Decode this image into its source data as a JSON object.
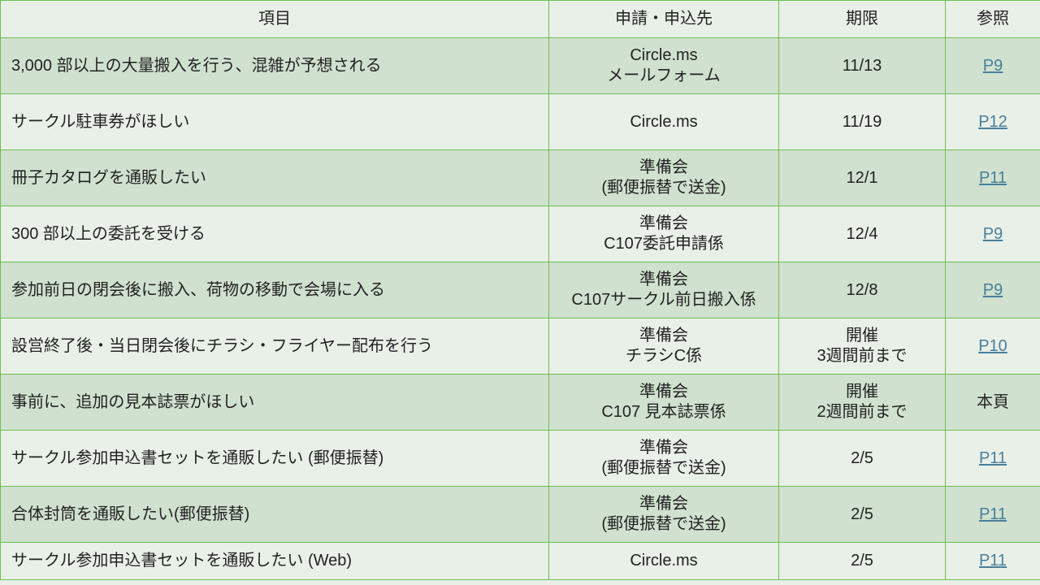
{
  "headers": [
    "項目",
    "申請・申込先",
    "期限",
    "参照"
  ],
  "rows": [
    {
      "item": "3,000 部以上の大量搬入を行う、混雑が予想される",
      "dest": [
        "Circle.ms",
        "メールフォーム"
      ],
      "deadline": [
        "11/13"
      ],
      "ref": "P9",
      "ref_link": true
    },
    {
      "item": "サークル駐車券がほしい",
      "dest": [
        "Circle.ms"
      ],
      "deadline": [
        "11/19"
      ],
      "ref": "P12",
      "ref_link": true
    },
    {
      "item": "冊子カタログを通販したい",
      "dest": [
        "準備会",
        "(郵便振替で送金)"
      ],
      "deadline": [
        "12/1"
      ],
      "ref": "P11",
      "ref_link": true
    },
    {
      "item": "300 部以上の委託を受ける",
      "dest": [
        "準備会",
        "C107委託申請係"
      ],
      "deadline": [
        "12/4"
      ],
      "ref": "P9",
      "ref_link": true
    },
    {
      "item": "参加前日の閉会後に搬入、荷物の移動で会場に入る",
      "dest": [
        "準備会",
        "C107サークル前日搬入係"
      ],
      "deadline": [
        "12/8"
      ],
      "ref": "P9",
      "ref_link": true
    },
    {
      "item": "設営終了後・当日閉会後にチラシ・フライヤー配布を行う",
      "dest": [
        "準備会",
        "チラシC係"
      ],
      "deadline": [
        "開催",
        "3週間前まで"
      ],
      "ref": "P10",
      "ref_link": true
    },
    {
      "item": "事前に、追加の見本誌票がほしい",
      "dest": [
        "準備会",
        "C107 見本誌票係"
      ],
      "deadline": [
        "開催",
        "2週間前まで"
      ],
      "ref": "本頁",
      "ref_link": false
    },
    {
      "item": "サークル参加申込書セットを通販したい (郵便振替)",
      "dest": [
        "準備会",
        "(郵便振替で送金)"
      ],
      "deadline": [
        "2/5"
      ],
      "ref": "P11",
      "ref_link": true
    },
    {
      "item": "合体封筒を通販したい(郵便振替)",
      "dest": [
        "準備会",
        "(郵便振替で送金)"
      ],
      "deadline": [
        "2/5"
      ],
      "ref": "P11",
      "ref_link": true
    },
    {
      "item": "サークル参加申込書セットを通販したい (Web)",
      "dest": [
        "Circle.ms"
      ],
      "deadline": [
        "2/5"
      ],
      "ref": "P11",
      "ref_link": true
    }
  ],
  "colors": {
    "row_dark": "#d0e1cf",
    "row_light": "#e9f0e8",
    "border": "#6fbf52",
    "link": "#4a7f9a"
  }
}
